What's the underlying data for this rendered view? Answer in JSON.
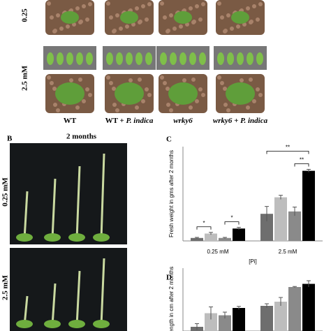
{
  "panel_a": {
    "rows": [
      "0.25",
      "2.5 mM"
    ],
    "columns": [
      [
        "WT"
      ],
      [
        "WT + ",
        "P. indica"
      ],
      [
        "wrky6"
      ],
      [
        "wrky6 + ",
        "P. indica"
      ]
    ]
  },
  "panel_b": {
    "label": "B",
    "title": "2 months",
    "rows": [
      "0.25 mM",
      "2.5 mM"
    ]
  },
  "chart_data": [
    {
      "type": "bar",
      "panel": "C",
      "y_label": "Fresh weight in gms after 2 months",
      "x_label": "[Pi]",
      "categories": [
        "0.25 mM",
        "2.5 mM"
      ],
      "ylim": [
        0,
        3.2
      ],
      "series": [
        {
          "color": "#6e6e6e",
          "values": [
            0.1,
            0.92
          ],
          "errors": [
            0.02,
            0.25
          ]
        },
        {
          "color": "#bdbdbd",
          "values": [
            0.25,
            1.48
          ],
          "errors": [
            0.04,
            0.07
          ]
        },
        {
          "color": "#8a8a8a",
          "values": [
            0.1,
            1.0
          ],
          "errors": [
            0.02,
            0.15
          ]
        },
        {
          "color": "#000000",
          "values": [
            0.42,
            2.38
          ],
          "errors": [
            0.04,
            0.05
          ]
        }
      ],
      "annotations": [
        "*",
        "*",
        "**",
        "**"
      ]
    },
    {
      "type": "bar",
      "panel": "D",
      "y_label": "ength in cm after 2 months",
      "categories": [
        null,
        null
      ],
      "ylim": [
        0,
        60
      ],
      "series": [
        {
          "color": "#6e6e6e",
          "values": [
            4,
            24
          ],
          "errors": [
            3,
            2
          ]
        },
        {
          "color": "#bdbdbd",
          "values": [
            17,
            28
          ],
          "errors": [
            6,
            4
          ]
        },
        {
          "color": "#8a8a8a",
          "values": [
            15,
            42
          ],
          "errors": [
            3,
            0.5
          ]
        },
        {
          "color": "#000000",
          "values": [
            22,
            45
          ],
          "errors": [
            1.5,
            3
          ]
        }
      ]
    }
  ]
}
